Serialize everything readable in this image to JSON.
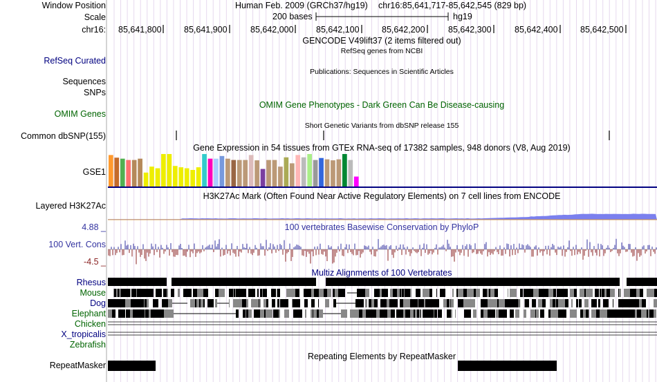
{
  "header": {
    "window_position_label": "Window Position",
    "assembly": "Human Feb. 2009 (GRCh37/hg19)",
    "position": "chr16:85,641,717-85,642,545 (829 bp)",
    "scale_label": "Scale",
    "scale_text": "200 bases",
    "scale_db": "hg19",
    "chrom_label": "chr16:",
    "ticks": [
      "85,641,800",
      "85,641,900",
      "85,642,000",
      "85,642,100",
      "85,642,200",
      "85,642,300",
      "85,642,400",
      "85,642,500"
    ]
  },
  "tracks": {
    "gencode_title": "GENCODE V49lift37 (2 items filtered out)",
    "refseq_label": "RefSeq Curated",
    "refseq_title": "RefSeq genes from NCBI",
    "pubs_title": "Publications: Sequences in Scientific Articles",
    "sequences_label": "Sequences",
    "snps_label": "SNPs",
    "omim_label": "OMIM Genes",
    "omim_title": "OMIM Gene Phenotypes - Dark Green Can Be Disease-causing",
    "dbsnp_title": "Short Genetic Variants from dbSNP release 155",
    "dbsnp_label": "Common dbSNP(155)",
    "gtex_title": "Gene Expression in 54 tissues from GTEx RNA-seq of 17382 samples, 948 donors (V8, Aug 2019)",
    "gtex_label": "GSE1",
    "h3k27_label": "Layered H3K27Ac",
    "h3k27_title": "H3K27Ac Mark (Often Found Near Active Regulatory Elements) on 7 cell lines from ENCODE",
    "phylop_max": "4.88 _",
    "phylop_min": "-4.5 _",
    "phylop_label": "100 Vert. Cons",
    "phylop_title": "100 vertebrates Basewise Conservation by PhyloP",
    "multiz_title": "Multiz Alignments of 100 Vertebrates",
    "species": [
      "Rhesus",
      "Mouse",
      "Dog",
      "Elephant",
      "Chicken",
      "X_tropicalis",
      "Zebrafish"
    ],
    "repeat_title": "Repeating Elements by RepeatMasker",
    "repeat_label": "RepeatMasker"
  },
  "colors": {
    "link_blue": "#000080",
    "omim_green": "#006400",
    "phylop_blue": "#3333a0",
    "phylop_red": "#8b2323",
    "h3k27_blue": "#6f74e8",
    "gtex_line": "#000080"
  },
  "gtex_bars": [
    {
      "color": "#ff9a2e",
      "value": 0.95
    },
    {
      "color": "#c46b2a",
      "value": 0.87
    },
    {
      "color": "#52b052",
      "value": 0.84
    },
    {
      "color": "#ff7070",
      "value": 0.8
    },
    {
      "color": "#b5895a",
      "value": 0.8
    },
    {
      "color": "#b5895a",
      "value": 0.84
    },
    {
      "color": "#eeee00",
      "value": 0.42
    },
    {
      "color": "#eeee00",
      "value": 0.6
    },
    {
      "color": "#eeee00",
      "value": 0.55
    },
    {
      "color": "#eeee00",
      "value": 0.98
    },
    {
      "color": "#eeee00",
      "value": 0.98
    },
    {
      "color": "#eeee00",
      "value": 0.62
    },
    {
      "color": "#eeee00",
      "value": 0.58
    },
    {
      "color": "#eeee00",
      "value": 0.55
    },
    {
      "color": "#eeee00",
      "value": 0.5
    },
    {
      "color": "#eeee00",
      "value": 0.58
    },
    {
      "color": "#33cccc",
      "value": 0.98
    },
    {
      "color": "#ff00bb",
      "value": 0.84
    },
    {
      "color": "#aaccff",
      "value": 0.84
    },
    {
      "color": "#7799dd",
      "value": 0.92
    },
    {
      "color": "#bb9977",
      "value": 0.84
    },
    {
      "color": "#996644",
      "value": 0.8
    },
    {
      "color": "#bb9977",
      "value": 0.8
    },
    {
      "color": "#bb9977",
      "value": 0.8
    },
    {
      "color": "#ddbbbb",
      "value": 0.95
    },
    {
      "color": "#bb9977",
      "value": 0.79
    },
    {
      "color": "#7a3fa0",
      "value": 0.53
    },
    {
      "color": "#bb9977",
      "value": 0.8
    },
    {
      "color": "#bb9977",
      "value": 0.8
    },
    {
      "color": "#bb9977",
      "value": 0.6
    },
    {
      "color": "#aaaa55",
      "value": 0.88
    },
    {
      "color": "#bb9977",
      "value": 0.7
    },
    {
      "color": "#ffb6b6",
      "value": 0.95
    },
    {
      "color": "#bbbbbb",
      "value": 0.88
    },
    {
      "color": "#aaee88",
      "value": 0.98
    },
    {
      "color": "#999999",
      "value": 0.8
    },
    {
      "color": "#3366dd",
      "value": 0.86
    },
    {
      "color": "#bb9977",
      "value": 0.82
    },
    {
      "color": "#bb9977",
      "value": 0.79
    },
    {
      "color": "#bb9977",
      "value": 0.82
    },
    {
      "color": "#008833",
      "value": 0.98
    },
    {
      "color": "#bbbbbb",
      "value": 0.8
    },
    {
      "color": "#ff00ff",
      "value": 0.3
    }
  ]
}
